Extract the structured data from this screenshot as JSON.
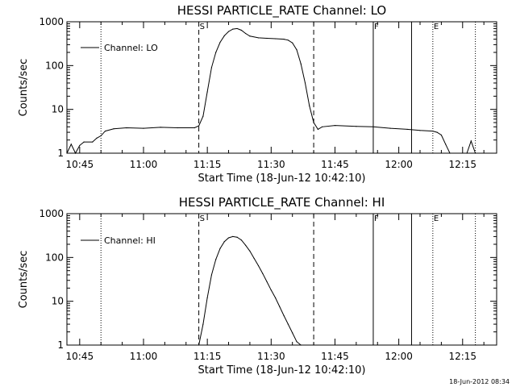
{
  "footer": {
    "timestamp": "18-Jun-2012 08:34"
  },
  "chart_data": [
    {
      "type": "line",
      "title": "HESSI PARTICLE_RATE Channel: LO",
      "xlabel": "Start Time (18-Jun-12 10:42:10)",
      "ylabel": "Counts/sec",
      "yscale": "log",
      "xlim": [
        "10:42",
        "12:23"
      ],
      "ylim": [
        1,
        1000
      ],
      "x_ticks": [
        "10:45",
        "11:00",
        "11:15",
        "11:30",
        "11:45",
        "12:00",
        "12:15"
      ],
      "y_ticks": [
        "1",
        "10",
        "100",
        "1000"
      ],
      "legend": {
        "position": "top-left",
        "entries": [
          "Channel: LO"
        ]
      },
      "markers": [
        {
          "time": "10:50",
          "style": "dotted",
          "label": ""
        },
        {
          "time": "11:13",
          "style": "dashed",
          "label": "S"
        },
        {
          "time": "11:40",
          "style": "dashed",
          "label": ""
        },
        {
          "time": "11:54",
          "style": "solid",
          "label": "F"
        },
        {
          "time": "12:03",
          "style": "solid",
          "label": ""
        },
        {
          "time": "12:08",
          "style": "dotted",
          "label": "E"
        },
        {
          "time": "12:18",
          "style": "dotted",
          "label": ""
        }
      ],
      "series": [
        {
          "name": "Channel: LO",
          "points": [
            [
              "10:42",
              1
            ],
            [
              "10:43",
              1.6
            ],
            [
              "10:44",
              1
            ],
            [
              "10:45",
              1.5
            ],
            [
              "10:46",
              1.8
            ],
            [
              "10:48",
              1.8
            ],
            [
              "10:49",
              2.2
            ],
            [
              "10:50",
              2.5
            ],
            [
              "10:51",
              3.2
            ],
            [
              "10:53",
              3.6
            ],
            [
              "10:56",
              3.8
            ],
            [
              "11:00",
              3.7
            ],
            [
              "11:04",
              3.9
            ],
            [
              "11:08",
              3.8
            ],
            [
              "11:12",
              3.8
            ],
            [
              "11:13",
              4.2
            ],
            [
              "11:14",
              7
            ],
            [
              "11:15",
              25
            ],
            [
              "11:16",
              90
            ],
            [
              "11:17",
              200
            ],
            [
              "11:18",
              340
            ],
            [
              "11:19",
              480
            ],
            [
              "11:20",
              600
            ],
            [
              "11:21",
              680
            ],
            [
              "11:22",
              700
            ],
            [
              "11:23",
              640
            ],
            [
              "11:24",
              540
            ],
            [
              "11:25",
              470
            ],
            [
              "11:27",
              430
            ],
            [
              "11:29",
              420
            ],
            [
              "11:31",
              410
            ],
            [
              "11:33",
              400
            ],
            [
              "11:34",
              380
            ],
            [
              "11:35",
              330
            ],
            [
              "11:36",
              230
            ],
            [
              "11:37",
              110
            ],
            [
              "11:38",
              40
            ],
            [
              "11:39",
              12
            ],
            [
              "11:40",
              5
            ],
            [
              "11:41",
              3.5
            ],
            [
              "11:42",
              4
            ],
            [
              "11:45",
              4.3
            ],
            [
              "11:50",
              4.1
            ],
            [
              "11:54",
              4
            ],
            [
              "11:58",
              3.7
            ],
            [
              "12:02",
              3.5
            ],
            [
              "12:05",
              3.3
            ],
            [
              "12:08",
              3.2
            ],
            [
              "12:09",
              3
            ],
            [
              "12:10",
              2.6
            ],
            [
              "12:11",
              1.6
            ],
            [
              "12:12",
              1
            ],
            [
              "12:16",
              1
            ],
            [
              "12:17",
              1.9
            ],
            [
              "12:18",
              1
            ]
          ]
        }
      ]
    },
    {
      "type": "line",
      "title": "HESSI PARTICLE_RATE Channel: HI",
      "xlabel": "Start Time (18-Jun-12 10:42:10)",
      "ylabel": "Counts/sec",
      "yscale": "log",
      "xlim": [
        "10:42",
        "12:23"
      ],
      "ylim": [
        1,
        1000
      ],
      "x_ticks": [
        "10:45",
        "11:00",
        "11:15",
        "11:30",
        "11:45",
        "12:00",
        "12:15"
      ],
      "y_ticks": [
        "1",
        "10",
        "100",
        "1000"
      ],
      "legend": {
        "position": "top-left",
        "entries": [
          "Channel: HI"
        ]
      },
      "markers": [
        {
          "time": "10:50",
          "style": "dotted",
          "label": ""
        },
        {
          "time": "11:13",
          "style": "dashed",
          "label": "S"
        },
        {
          "time": "11:40",
          "style": "dashed",
          "label": ""
        },
        {
          "time": "11:54",
          "style": "solid",
          "label": "F"
        },
        {
          "time": "12:03",
          "style": "solid",
          "label": ""
        },
        {
          "time": "12:08",
          "style": "dotted",
          "label": "E"
        },
        {
          "time": "12:18",
          "style": "dotted",
          "label": ""
        }
      ],
      "series": [
        {
          "name": "Channel: HI",
          "points": [
            [
              "11:13",
              1
            ],
            [
              "11:14",
              3
            ],
            [
              "11:15",
              12
            ],
            [
              "11:16",
              40
            ],
            [
              "11:17",
              90
            ],
            [
              "11:18",
              160
            ],
            [
              "11:19",
              230
            ],
            [
              "11:20",
              280
            ],
            [
              "11:21",
              300
            ],
            [
              "11:22",
              290
            ],
            [
              "11:23",
              250
            ],
            [
              "11:24",
              190
            ],
            [
              "11:25",
              140
            ],
            [
              "11:26",
              95
            ],
            [
              "11:27",
              65
            ],
            [
              "11:28",
              43
            ],
            [
              "11:29",
              28
            ],
            [
              "11:30",
              18
            ],
            [
              "11:31",
              12
            ],
            [
              "11:32",
              7.5
            ],
            [
              "11:33",
              4.7
            ],
            [
              "11:34",
              3
            ],
            [
              "11:35",
              1.9
            ],
            [
              "11:36",
              1.2
            ],
            [
              "11:37",
              1
            ]
          ]
        }
      ]
    }
  ]
}
